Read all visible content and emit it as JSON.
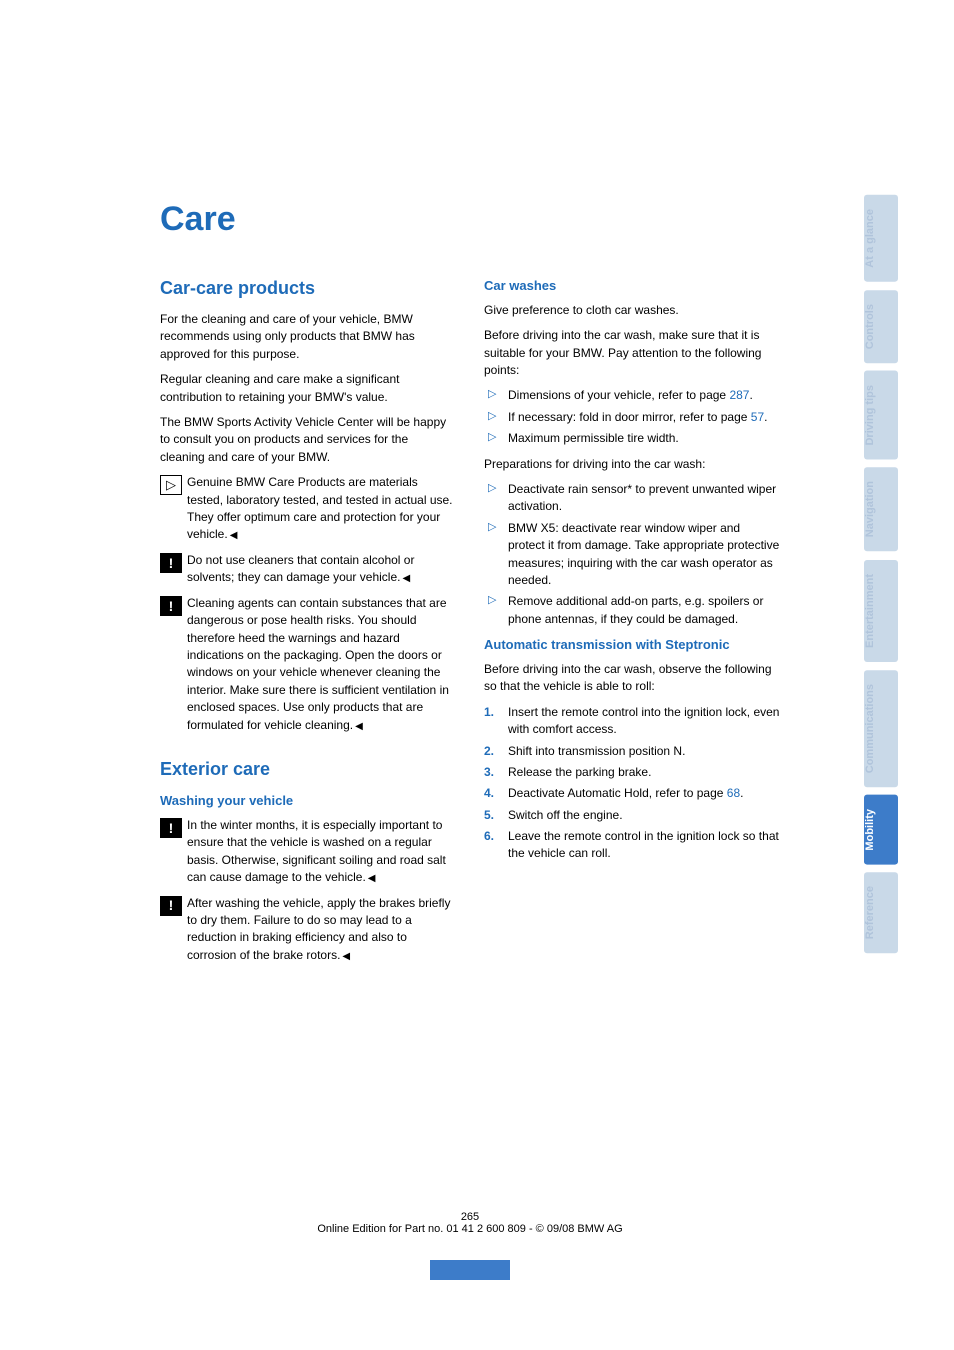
{
  "title": "Care",
  "sidebar": {
    "tabs": [
      {
        "label": "At a glance",
        "active": false
      },
      {
        "label": "Controls",
        "active": false
      },
      {
        "label": "Driving tips",
        "active": false
      },
      {
        "label": "Navigation",
        "active": false
      },
      {
        "label": "Entertainment",
        "active": false
      },
      {
        "label": "Communications",
        "active": false
      },
      {
        "label": "Mobility",
        "active": true
      },
      {
        "label": "Reference",
        "active": false
      }
    ]
  },
  "left": {
    "section1_title": "Car-care products",
    "p1": "For the cleaning and care of your vehicle, BMW recommends using only products that BMW has approved for this purpose.",
    "p2": "Regular cleaning and care make a significant contribution to retaining your BMW's value.",
    "p3": "The BMW Sports Activity Vehicle Center will be happy to consult you on products and services for the cleaning and care of your BMW.",
    "note1": "Genuine BMW Care Products are materials tested, laboratory tested, and tested in actual use. They offer optimum care and protection for your vehicle.",
    "note2": "Do not use cleaners that contain alcohol or solvents; they can damage your vehicle.",
    "note3": "Cleaning agents can contain substances that are dangerous or pose health risks. You should therefore heed the warnings and hazard indications on the packaging. Open the doors or windows on your vehicle whenever cleaning the interior. Make sure there is sufficient ventilation in enclosed spaces. Use only products that are formulated for vehicle cleaning.",
    "section2_title": "Exterior care",
    "sub1": "Washing your vehicle",
    "note4": "In the winter months, it is especially important to ensure that the vehicle is washed on a regular basis. Otherwise, significant soiling and road salt can cause damage to the vehicle.",
    "note5": "After washing the vehicle, apply the brakes briefly to dry them. Failure to do so may lead to a reduction in braking efficiency and also to corrosion of the brake rotors."
  },
  "right": {
    "sub1": "Car washes",
    "p1": "Give preference to cloth car washes.",
    "p2": "Before driving into the car wash, make sure that it is suitable for your BMW. Pay attention to the following points:",
    "bullets1": [
      {
        "pre": "Dimensions of your vehicle, refer to page ",
        "link": "287",
        "post": "."
      },
      {
        "pre": "If necessary: fold in door mirror, refer to page ",
        "link": "57",
        "post": "."
      },
      {
        "pre": "Maximum permissible tire width.",
        "link": "",
        "post": ""
      }
    ],
    "p3": "Preparations for driving into the car wash:",
    "bullets2": [
      "Deactivate rain sensor* to prevent unwanted wiper activation.",
      "BMW X5: deactivate rear window wiper and protect it from damage. Take appropriate protective measures; inquiring with the car wash operator as needed.",
      "Remove additional add-on parts, e.g. spoilers or phone antennas, if they could be damaged."
    ],
    "sub2": "Automatic transmission with Steptronic",
    "p4": "Before driving into the car wash, observe the following so that the vehicle is able to roll:",
    "steps": [
      "Insert the remote control into the ignition lock, even with comfort access.",
      "Shift into transmission position N.",
      "Release the parking brake.",
      {
        "pre": "Deactivate Automatic Hold, refer to page ",
        "link": "68",
        "post": "."
      },
      "Switch off the engine.",
      "Leave the remote control in the ignition lock so that the vehicle can roll."
    ]
  },
  "footer": {
    "page_num": "265",
    "line": "Online Edition for Part no. 01 41 2 600 809 - © 09/08 BMW AG"
  }
}
